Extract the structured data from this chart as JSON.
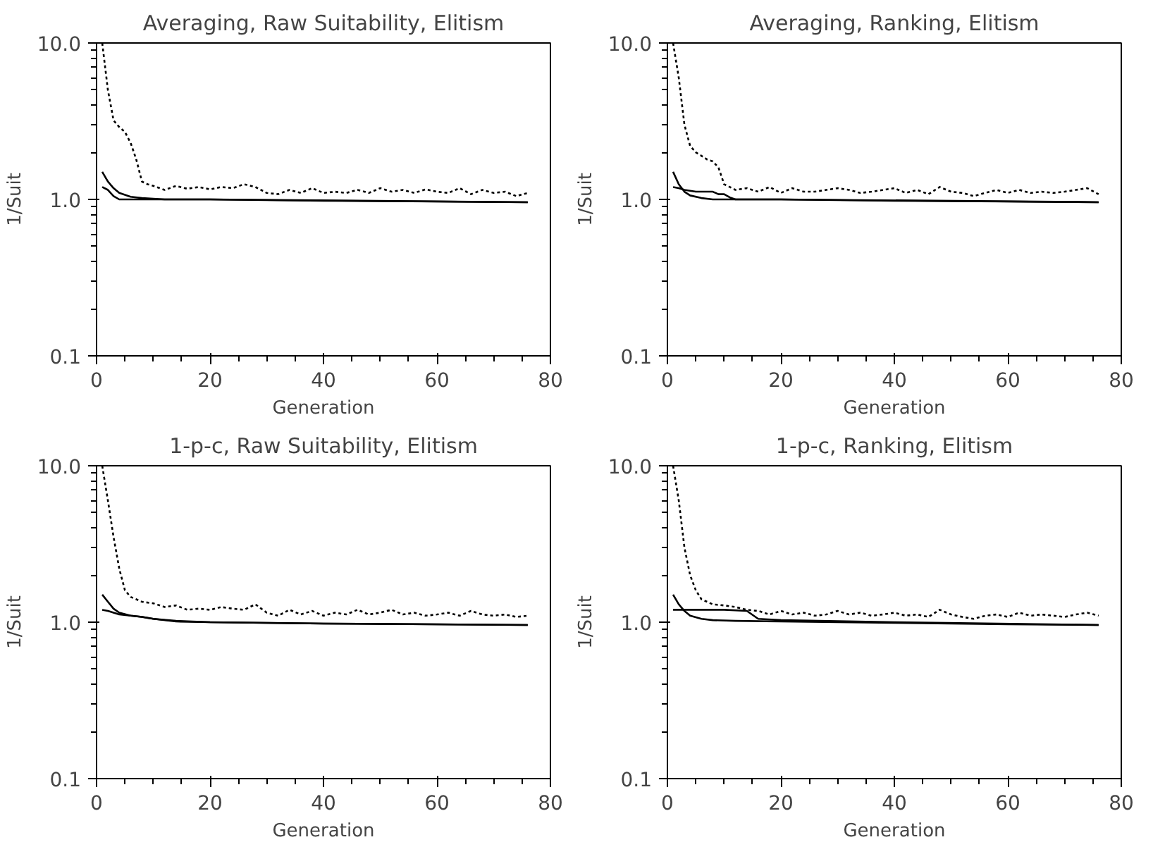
{
  "chart_data": [
    {
      "type": "line",
      "title": "Averaging, Raw Suitability, Elitism",
      "xlabel": "Generation",
      "ylabel": "1/Suit",
      "log": "y",
      "xlim": [
        0,
        80
      ],
      "ylim": [
        0.1,
        10
      ],
      "xticks": [
        0,
        20,
        40,
        60,
        80
      ],
      "yticks": [
        {
          "value": 0.1,
          "label": "0.1"
        },
        {
          "value": 1,
          "label": "1.0"
        },
        {
          "value": 10,
          "label": "10.0"
        }
      ],
      "grid": false,
      "series": [
        {
          "color": "#000000",
          "line_style": "dotted",
          "x": [
            1,
            2,
            3,
            4,
            5,
            6,
            7,
            8,
            9,
            10,
            12,
            14,
            16,
            18,
            20,
            22,
            24,
            26,
            28,
            30,
            32,
            34,
            36,
            38,
            40,
            42,
            44,
            46,
            48,
            50,
            52,
            54,
            56,
            58,
            60,
            62,
            64,
            66,
            68,
            70,
            72,
            74,
            76
          ],
          "values": [
            10,
            5,
            3.2,
            2.9,
            2.7,
            2.3,
            1.8,
            1.3,
            1.25,
            1.22,
            1.15,
            1.22,
            1.17,
            1.2,
            1.16,
            1.2,
            1.18,
            1.25,
            1.2,
            1.1,
            1.08,
            1.15,
            1.1,
            1.18,
            1.1,
            1.12,
            1.1,
            1.15,
            1.1,
            1.18,
            1.12,
            1.15,
            1.1,
            1.16,
            1.12,
            1.1,
            1.18,
            1.08,
            1.15,
            1.1,
            1.12,
            1.05,
            1.1
          ]
        },
        {
          "color": "#000000",
          "line_style": "solid",
          "x": [
            1,
            2,
            3,
            4,
            6,
            8,
            12,
            20,
            40,
            60,
            76
          ],
          "values": [
            1.5,
            1.3,
            1.18,
            1.1,
            1.04,
            1.02,
            1.0,
            1.0,
            0.98,
            0.97,
            0.96
          ]
        },
        {
          "color": "#000000",
          "line_style": "solid",
          "x": [
            1,
            2,
            3,
            4,
            6,
            20,
            76
          ],
          "values": [
            1.2,
            1.15,
            1.05,
            1.0,
            1.0,
            1.0,
            0.96
          ]
        }
      ]
    },
    {
      "type": "line",
      "title": "Averaging, Ranking, Elitism",
      "xlabel": "Generation",
      "ylabel": "1/Suit",
      "log": "y",
      "xlim": [
        0,
        80
      ],
      "ylim": [
        0.1,
        10
      ],
      "xticks": [
        0,
        20,
        40,
        60,
        80
      ],
      "yticks": [
        {
          "value": 0.1,
          "label": "0.1"
        },
        {
          "value": 1,
          "label": "1.0"
        },
        {
          "value": 10,
          "label": "10.0"
        }
      ],
      "grid": false,
      "series": [
        {
          "color": "#000000",
          "line_style": "dotted",
          "x": [
            1,
            2,
            3,
            4,
            5,
            6,
            7,
            8,
            9,
            10,
            11,
            12,
            14,
            16,
            18,
            20,
            22,
            24,
            26,
            28,
            30,
            32,
            34,
            36,
            38,
            40,
            42,
            44,
            46,
            48,
            50,
            52,
            54,
            56,
            58,
            60,
            62,
            64,
            66,
            68,
            70,
            72,
            74,
            76
          ],
          "values": [
            10,
            6,
            3,
            2.2,
            2.0,
            1.9,
            1.8,
            1.75,
            1.6,
            1.25,
            1.2,
            1.15,
            1.18,
            1.12,
            1.2,
            1.1,
            1.18,
            1.12,
            1.12,
            1.15,
            1.18,
            1.15,
            1.1,
            1.12,
            1.15,
            1.18,
            1.1,
            1.15,
            1.08,
            1.2,
            1.12,
            1.1,
            1.05,
            1.1,
            1.15,
            1.1,
            1.15,
            1.1,
            1.12,
            1.1,
            1.12,
            1.15,
            1.18,
            1.08
          ]
        },
        {
          "color": "#000000",
          "line_style": "solid",
          "x": [
            1,
            2,
            3,
            4,
            6,
            8,
            12,
            20,
            40,
            60,
            76
          ],
          "values": [
            1.5,
            1.25,
            1.12,
            1.06,
            1.02,
            1.0,
            1.0,
            1.0,
            0.98,
            0.97,
            0.96
          ]
        },
        {
          "color": "#000000",
          "line_style": "solid",
          "x": [
            1,
            2,
            3,
            5,
            8,
            9,
            10,
            11,
            12,
            20,
            76
          ],
          "values": [
            1.2,
            1.18,
            1.15,
            1.12,
            1.12,
            1.08,
            1.08,
            1.03,
            1.0,
            1.0,
            0.96
          ]
        }
      ]
    },
    {
      "type": "line",
      "title": "1-p-c, Raw Suitability, Elitism",
      "xlabel": "Generation",
      "ylabel": "1/Suit",
      "log": "y",
      "xlim": [
        0,
        80
      ],
      "ylim": [
        0.1,
        10
      ],
      "xticks": [
        0,
        20,
        40,
        60,
        80
      ],
      "yticks": [
        {
          "value": 0.1,
          "label": "0.1"
        },
        {
          "value": 1,
          "label": "1.0"
        },
        {
          "value": 10,
          "label": "10.0"
        }
      ],
      "grid": false,
      "series": [
        {
          "color": "#000000",
          "line_style": "dotted",
          "x": [
            1,
            2,
            3,
            4,
            5,
            6,
            7,
            8,
            10,
            12,
            14,
            16,
            18,
            20,
            22,
            24,
            26,
            28,
            30,
            32,
            34,
            36,
            38,
            40,
            42,
            44,
            46,
            48,
            50,
            52,
            54,
            56,
            58,
            60,
            62,
            64,
            66,
            68,
            70,
            72,
            74,
            76
          ],
          "values": [
            10,
            6,
            3.5,
            2.2,
            1.6,
            1.45,
            1.4,
            1.35,
            1.32,
            1.25,
            1.28,
            1.2,
            1.22,
            1.2,
            1.25,
            1.22,
            1.2,
            1.3,
            1.15,
            1.1,
            1.2,
            1.12,
            1.18,
            1.1,
            1.15,
            1.12,
            1.2,
            1.12,
            1.15,
            1.2,
            1.12,
            1.15,
            1.1,
            1.12,
            1.15,
            1.1,
            1.18,
            1.12,
            1.1,
            1.12,
            1.08,
            1.1
          ]
        },
        {
          "color": "#000000",
          "line_style": "solid",
          "x": [
            1,
            2,
            3,
            4,
            6,
            8,
            10,
            14,
            20,
            40,
            60,
            76
          ],
          "values": [
            1.5,
            1.35,
            1.22,
            1.15,
            1.1,
            1.08,
            1.05,
            1.02,
            1.0,
            0.98,
            0.97,
            0.96
          ]
        },
        {
          "color": "#000000",
          "line_style": "solid",
          "x": [
            1,
            2,
            4,
            6,
            8,
            10,
            14,
            20,
            40,
            76
          ],
          "values": [
            1.2,
            1.18,
            1.12,
            1.1,
            1.08,
            1.05,
            1.01,
            1.0,
            0.98,
            0.96
          ]
        }
      ]
    },
    {
      "type": "line",
      "title": "1-p-c, Ranking, Elitism",
      "xlabel": "Generation",
      "ylabel": "1/Suit",
      "log": "y",
      "xlim": [
        0,
        80
      ],
      "ylim": [
        0.1,
        10
      ],
      "xticks": [
        0,
        20,
        40,
        60,
        80
      ],
      "yticks": [
        {
          "value": 0.1,
          "label": "0.1"
        },
        {
          "value": 1,
          "label": "1.0"
        },
        {
          "value": 10,
          "label": "10.0"
        }
      ],
      "grid": false,
      "series": [
        {
          "color": "#000000",
          "line_style": "dotted",
          "x": [
            1,
            2,
            3,
            4,
            5,
            6,
            7,
            8,
            10,
            12,
            14,
            16,
            18,
            20,
            22,
            24,
            26,
            28,
            30,
            32,
            34,
            36,
            38,
            40,
            42,
            44,
            46,
            48,
            50,
            52,
            54,
            56,
            58,
            60,
            62,
            64,
            66,
            68,
            70,
            72,
            74,
            76
          ],
          "values": [
            10,
            6,
            3,
            2,
            1.6,
            1.4,
            1.35,
            1.3,
            1.28,
            1.25,
            1.2,
            1.18,
            1.12,
            1.18,
            1.12,
            1.15,
            1.1,
            1.12,
            1.18,
            1.12,
            1.15,
            1.1,
            1.12,
            1.15,
            1.1,
            1.12,
            1.08,
            1.2,
            1.12,
            1.08,
            1.05,
            1.1,
            1.12,
            1.08,
            1.15,
            1.1,
            1.12,
            1.1,
            1.08,
            1.12,
            1.15,
            1.1
          ]
        },
        {
          "color": "#000000",
          "line_style": "solid",
          "x": [
            1,
            2,
            3,
            4,
            6,
            8,
            12,
            20,
            40,
            60,
            76
          ],
          "values": [
            1.5,
            1.3,
            1.18,
            1.1,
            1.05,
            1.03,
            1.02,
            1.01,
            0.99,
            0.97,
            0.96
          ]
        },
        {
          "color": "#000000",
          "line_style": "solid",
          "x": [
            1,
            5,
            10,
            14,
            16,
            20,
            40,
            76
          ],
          "values": [
            1.2,
            1.2,
            1.2,
            1.18,
            1.05,
            1.03,
            1.0,
            0.96
          ]
        }
      ]
    }
  ]
}
